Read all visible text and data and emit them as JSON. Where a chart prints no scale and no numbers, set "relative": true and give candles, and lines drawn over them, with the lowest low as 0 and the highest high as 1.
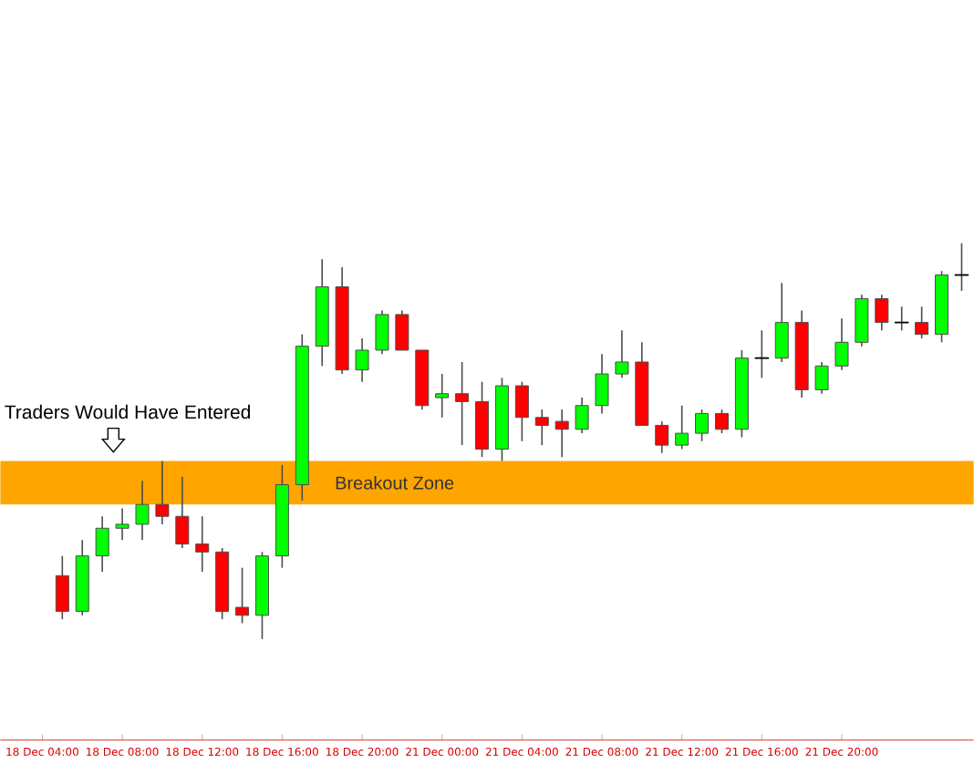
{
  "chart_data": {
    "type": "candlestick",
    "relative": true,
    "categories": [
      "18 Dec 04:00",
      null,
      null,
      null,
      "18 Dec 08:00",
      null,
      null,
      null,
      "18 Dec 12:00",
      null,
      null,
      null,
      "18 Dec 16:00",
      null,
      null,
      null,
      "18 Dec 20:00",
      null,
      null,
      null,
      "21 Dec 00:00",
      null,
      null,
      null,
      "21 Dec 04:00",
      null,
      null,
      null,
      "21 Dec 08:00",
      null,
      null,
      null,
      "21 Dec 12:00",
      null,
      null,
      null,
      "21 Dec 16:00",
      null,
      null,
      null,
      "21 Dec 20:00",
      null,
      null,
      null,
      null,
      null,
      null
    ],
    "ohlc": [
      null,
      [
        0.16,
        0.21,
        0.05,
        0.07
      ],
      [
        0.07,
        0.25,
        0.06,
        0.21
      ],
      [
        0.21,
        0.31,
        0.17,
        0.28
      ],
      [
        0.28,
        0.33,
        0.25,
        0.29
      ],
      [
        0.29,
        0.4,
        0.25,
        0.34
      ],
      [
        0.34,
        0.45,
        0.29,
        0.31
      ],
      [
        0.31,
        0.41,
        0.23,
        0.24
      ],
      [
        0.24,
        0.31,
        0.17,
        0.22
      ],
      [
        0.22,
        0.23,
        0.05,
        0.07
      ],
      [
        0.08,
        0.18,
        0.04,
        0.06
      ],
      [
        0.06,
        0.22,
        0,
        0.21
      ],
      [
        0.21,
        0.44,
        0.18,
        0.39
      ],
      [
        0.39,
        0.77,
        0.35,
        0.74
      ],
      [
        0.74,
        0.96,
        0.69,
        0.89
      ],
      [
        0.89,
        0.94,
        0.67,
        0.68
      ],
      [
        0.68,
        0.76,
        0.65,
        0.73
      ],
      [
        0.73,
        0.83,
        0.72,
        0.82
      ],
      [
        0.82,
        0.83,
        0.73,
        0.73
      ],
      [
        0.73,
        0.73,
        0.58,
        0.59
      ],
      [
        0.61,
        0.67,
        0.56,
        0.62
      ],
      [
        0.62,
        0.7,
        0.49,
        0.6
      ],
      [
        0.6,
        0.65,
        0.46,
        0.48
      ],
      [
        0.48,
        0.66,
        0.45,
        0.64
      ],
      [
        0.64,
        0.65,
        0.5,
        0.56
      ],
      [
        0.56,
        0.58,
        0.49,
        0.54
      ],
      [
        0.55,
        0.58,
        0.46,
        0.53
      ],
      [
        0.53,
        0.61,
        0.52,
        0.59
      ],
      [
        0.59,
        0.72,
        0.57,
        0.67
      ],
      [
        0.67,
        0.78,
        0.66,
        0.7
      ],
      [
        0.7,
        0.75,
        0.54,
        0.54
      ],
      [
        0.54,
        0.55,
        0.47,
        0.49
      ],
      [
        0.49,
        0.59,
        0.48,
        0.52
      ],
      [
        0.52,
        0.58,
        0.5,
        0.57
      ],
      [
        0.57,
        0.58,
        0.52,
        0.53
      ],
      [
        0.53,
        0.73,
        0.51,
        0.71
      ],
      [
        0.71,
        0.78,
        0.66,
        0.71
      ],
      [
        0.71,
        0.9,
        0.7,
        0.8
      ],
      [
        0.8,
        0.83,
        0.61,
        0.63
      ],
      [
        0.63,
        0.7,
        0.62,
        0.69
      ],
      [
        0.69,
        0.81,
        0.68,
        0.75
      ],
      [
        0.75,
        0.87,
        0.74,
        0.86
      ],
      [
        0.86,
        0.87,
        0.78,
        0.8
      ],
      [
        0.8,
        0.84,
        0.78,
        0.8
      ],
      [
        0.8,
        0.84,
        0.76,
        0.77
      ],
      [
        0.77,
        0.93,
        0.75,
        0.92
      ],
      [
        0.92,
        1,
        0.88,
        0.92
      ]
    ],
    "colors": [
      null,
      "#ff0000",
      "#00ff00",
      "#00ff00",
      "#00ff00",
      "#00ff00",
      "#ff0000",
      "#ff0000",
      "#ff0000",
      "#ff0000",
      "#ff0000",
      "#00ff00",
      "#00ff00",
      "#00ff00",
      "#00ff00",
      "#ff0000",
      "#00ff00",
      "#00ff00",
      "#ff0000",
      "#ff0000",
      "#00ff00",
      "#ff0000",
      "#ff0000",
      "#00ff00",
      "#ff0000",
      "#ff0000",
      "#ff0000",
      "#00ff00",
      "#00ff00",
      "#00ff00",
      "#ff0000",
      "#ff0000",
      "#00ff00",
      "#00ff00",
      "#ff0000",
      "#00ff00",
      "#000000",
      "#00ff00",
      "#ff0000",
      "#00ff00",
      "#00ff00",
      "#00ff00",
      "#ff0000",
      "#000000",
      "#ff0000",
      "#00ff00",
      "#000000"
    ],
    "bands": [
      {
        "axis": "y",
        "from": 0.34,
        "to": 0.45,
        "label": "Breakout Zone",
        "color": "#ffa500"
      }
    ],
    "annotations": [
      "Traders Would Have Entered"
    ]
  }
}
